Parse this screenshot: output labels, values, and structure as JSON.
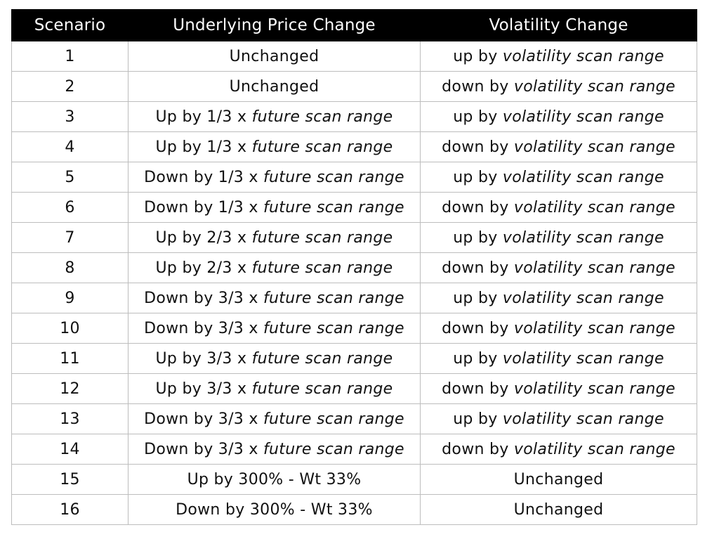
{
  "table": {
    "headers": [
      "Scenario",
      "Underlying Price Change",
      "Volatility Change"
    ],
    "rows": [
      {
        "scenario": "1",
        "price": {
          "pre": "Unchanged",
          "italic": ""
        },
        "vol": {
          "pre": "up by ",
          "italic": "volatility scan range"
        }
      },
      {
        "scenario": "2",
        "price": {
          "pre": "Unchanged",
          "italic": ""
        },
        "vol": {
          "pre": "down by ",
          "italic": "volatility scan range"
        }
      },
      {
        "scenario": "3",
        "price": {
          "pre": "Up by 1/3 x ",
          "italic": "future scan range"
        },
        "vol": {
          "pre": "up by ",
          "italic": "volatility scan range"
        }
      },
      {
        "scenario": "4",
        "price": {
          "pre": "Up by 1/3 x ",
          "italic": "future scan range"
        },
        "vol": {
          "pre": "down by ",
          "italic": "volatility scan range"
        }
      },
      {
        "scenario": "5",
        "price": {
          "pre": "Down by 1/3 x ",
          "italic": "future scan range"
        },
        "vol": {
          "pre": "up by ",
          "italic": "volatility scan range"
        }
      },
      {
        "scenario": "6",
        "price": {
          "pre": "Down by 1/3 x ",
          "italic": "future scan range"
        },
        "vol": {
          "pre": "down by ",
          "italic": "volatility scan range"
        }
      },
      {
        "scenario": "7",
        "price": {
          "pre": "Up by 2/3 x ",
          "italic": "future scan range"
        },
        "vol": {
          "pre": "up by ",
          "italic": "volatility scan range"
        }
      },
      {
        "scenario": "8",
        "price": {
          "pre": "Up by 2/3 x ",
          "italic": "future scan range"
        },
        "vol": {
          "pre": "down by ",
          "italic": "volatility scan range"
        }
      },
      {
        "scenario": "9",
        "price": {
          "pre": "Down by 3/3 x ",
          "italic": "future scan range"
        },
        "vol": {
          "pre": "up by ",
          "italic": "volatility scan range"
        }
      },
      {
        "scenario": "10",
        "price": {
          "pre": "Down by 3/3 x ",
          "italic": "future scan range"
        },
        "vol": {
          "pre": "down by ",
          "italic": "volatility scan range"
        }
      },
      {
        "scenario": "11",
        "price": {
          "pre": "Up by 3/3 x ",
          "italic": "future scan range"
        },
        "vol": {
          "pre": "up by ",
          "italic": "volatility scan range"
        }
      },
      {
        "scenario": "12",
        "price": {
          "pre": "Up by 3/3 x ",
          "italic": "future scan range"
        },
        "vol": {
          "pre": "down by ",
          "italic": "volatility scan range"
        }
      },
      {
        "scenario": "13",
        "price": {
          "pre": "Down by 3/3 x ",
          "italic": "future scan range"
        },
        "vol": {
          "pre": "up by ",
          "italic": "volatility scan range"
        }
      },
      {
        "scenario": "14",
        "price": {
          "pre": "Down by 3/3 x ",
          "italic": "future scan range"
        },
        "vol": {
          "pre": "down by ",
          "italic": "volatility scan range"
        }
      },
      {
        "scenario": "15",
        "price": {
          "pre": "Up by 300% - Wt 33%",
          "italic": ""
        },
        "vol": {
          "pre": "Unchanged",
          "italic": ""
        }
      },
      {
        "scenario": "16",
        "price": {
          "pre": "Down by 300% - Wt 33%",
          "italic": ""
        },
        "vol": {
          "pre": "Unchanged",
          "italic": ""
        }
      }
    ]
  }
}
